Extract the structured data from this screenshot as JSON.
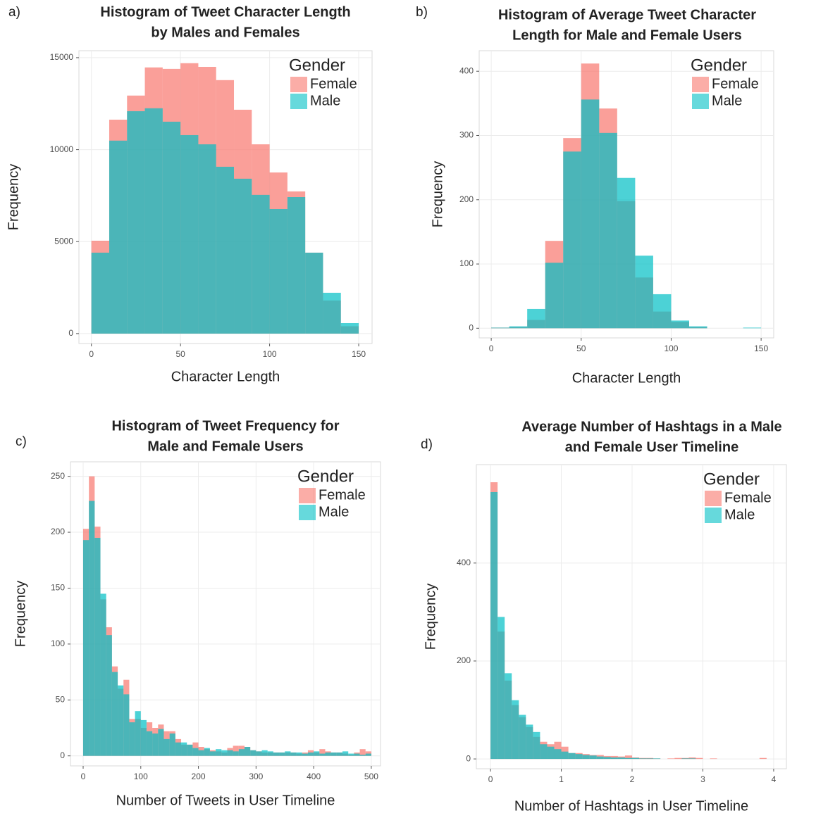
{
  "chart_data": [
    {
      "type": "histogram",
      "label": "a)",
      "title": [
        "Histogram of Tweet Character Length",
        "by Males and Females"
      ],
      "x_label": "Character Length",
      "y_label": "Frequency",
      "legend_title": "Gender",
      "legend_position": "top-right",
      "grid": true,
      "bins": [
        0,
        10,
        20,
        30,
        40,
        50,
        60,
        70,
        80,
        90,
        100,
        110,
        120,
        130,
        140,
        150
      ],
      "series": [
        {
          "name": "Female",
          "color": "#F8766D",
          "values": [
            5050,
            11630,
            12940,
            14470,
            14390,
            14700,
            14500,
            13780,
            12170,
            10290,
            8760,
            7730,
            4400,
            1800,
            400
          ]
        },
        {
          "name": "Male",
          "color": "#00BFC4",
          "values": [
            4400,
            10490,
            12090,
            12250,
            11520,
            10790,
            10290,
            9070,
            8420,
            7540,
            6770,
            7420,
            4400,
            2220,
            570
          ]
        }
      ],
      "xlim": [
        -7,
        157.5
      ],
      "xticks": [
        0,
        50,
        100,
        150
      ],
      "ylim": [
        -540,
        15380
      ],
      "yticks": [
        0,
        5000,
        10000,
        15000
      ]
    },
    {
      "type": "histogram",
      "label": "b)",
      "title": [
        "Histogram of Average Tweet Character",
        "Length for Male and Female Users"
      ],
      "x_label": "Character Length",
      "y_label": "Frequency",
      "legend_title": "Gender",
      "legend_position": "top-right",
      "grid": true,
      "bins": [
        0,
        10,
        20,
        30,
        40,
        50,
        60,
        70,
        80,
        90,
        100,
        110,
        120,
        130,
        140,
        150
      ],
      "series": [
        {
          "name": "Female",
          "color": "#F8766D",
          "values": [
            1,
            2,
            13,
            136,
            296,
            412,
            342,
            198,
            79,
            26,
            10,
            2,
            0,
            0,
            0
          ]
        },
        {
          "name": "Male",
          "color": "#00BFC4",
          "values": [
            1,
            3,
            30,
            102,
            275,
            356,
            304,
            234,
            113,
            53,
            12,
            3,
            0,
            0,
            1
          ]
        }
      ],
      "xlim": [
        -6.7,
        157
      ],
      "xticks": [
        0,
        50,
        100,
        150
      ],
      "ylim": [
        -15,
        432
      ],
      "yticks": [
        0,
        100,
        200,
        300,
        400
      ]
    },
    {
      "type": "histogram",
      "label": "c)",
      "title": [
        "Histogram of Tweet Frequency for",
        "Male and Female Users"
      ],
      "x_label": "Number of Tweets in User Timeline",
      "y_label": "Frequency",
      "legend_title": "Gender",
      "legend_position": "top-right",
      "grid": true,
      "bins": [
        0,
        10,
        20,
        30,
        40,
        50,
        60,
        70,
        80,
        90,
        100,
        110,
        120,
        130,
        140,
        150,
        160,
        170,
        180,
        190,
        200,
        210,
        220,
        230,
        240,
        250,
        260,
        270,
        280,
        290,
        300,
        310,
        320,
        330,
        340,
        350,
        360,
        370,
        380,
        390,
        400,
        410,
        420,
        430,
        440,
        450,
        460,
        470,
        480,
        490,
        500
      ],
      "series": [
        {
          "name": "Female",
          "color": "#F8766D",
          "values": [
            203,
            250,
            205,
            140,
            115,
            80,
            60,
            68,
            33,
            33,
            25,
            30,
            25,
            28,
            22,
            22,
            15,
            10,
            10,
            12,
            8,
            6,
            5,
            4,
            3,
            7,
            9,
            9,
            8,
            5,
            4,
            3,
            3,
            3,
            3,
            3,
            3,
            2,
            3,
            5,
            3,
            6,
            4,
            3,
            3,
            2,
            1,
            3,
            6,
            4
          ]
        },
        {
          "name": "Male",
          "color": "#00BFC4",
          "values": [
            193,
            228,
            195,
            145,
            108,
            75,
            63,
            55,
            30,
            40,
            32,
            22,
            20,
            24,
            15,
            20,
            12,
            12,
            10,
            7,
            5,
            7,
            4,
            6,
            5,
            5,
            4,
            6,
            8,
            5,
            4,
            5,
            4,
            3,
            3,
            4,
            3,
            3,
            2,
            3,
            4,
            2,
            3,
            3,
            3,
            4,
            2,
            2,
            1,
            2
          ]
        }
      ],
      "xlim": [
        -22,
        516
      ],
      "xticks": [
        0,
        100,
        200,
        300,
        400,
        500
      ],
      "ylim": [
        -9,
        263
      ],
      "yticks": [
        0,
        50,
        100,
        150,
        200,
        250
      ]
    },
    {
      "type": "histogram",
      "label": "d)",
      "title": [
        "Average Number of Hashtags in a Male",
        "and Female User Timeline"
      ],
      "x_label": "Number of Hashtags in User Timeline",
      "y_label": "Frequency",
      "legend_title": "Gender",
      "legend_position": "top-right",
      "grid": true,
      "bins": [
        0,
        0.1,
        0.2,
        0.3,
        0.4,
        0.5,
        0.6,
        0.7,
        0.8,
        0.9,
        1,
        1.1,
        1.2,
        1.3,
        1.4,
        1.5,
        1.6,
        1.7,
        1.8,
        1.9,
        2,
        2.1,
        2.2,
        2.3,
        2.4,
        2.5,
        2.6,
        2.7,
        2.8,
        2.9,
        3,
        3.1,
        3.2,
        3.3,
        3.4,
        3.5,
        3.6,
        3.7,
        3.8,
        3.9,
        4
      ],
      "series": [
        {
          "name": "Female",
          "color": "#F8766D",
          "values": [
            565,
            260,
            160,
            110,
            85,
            65,
            45,
            35,
            30,
            35,
            25,
            12,
            12,
            10,
            8,
            8,
            6,
            6,
            5,
            7,
            3,
            2,
            2,
            1,
            0,
            1,
            2,
            2,
            3,
            2,
            0,
            1,
            0,
            0,
            0,
            0,
            0,
            0,
            2,
            0
          ]
        },
        {
          "name": "Male",
          "color": "#00BFC4",
          "values": [
            545,
            290,
            175,
            120,
            90,
            70,
            55,
            30,
            25,
            20,
            15,
            12,
            10,
            8,
            7,
            5,
            4,
            3,
            3,
            2,
            2,
            1,
            1,
            1,
            0,
            0,
            0,
            1,
            1,
            0,
            0,
            0,
            0,
            0,
            0,
            0,
            0,
            0,
            0,
            0
          ]
        }
      ],
      "xlim": [
        -0.2,
        4.18
      ],
      "xticks": [
        0,
        1,
        2,
        3,
        4
      ],
      "ylim": [
        -20,
        601
      ],
      "yticks": [
        0,
        200,
        400
      ]
    }
  ]
}
